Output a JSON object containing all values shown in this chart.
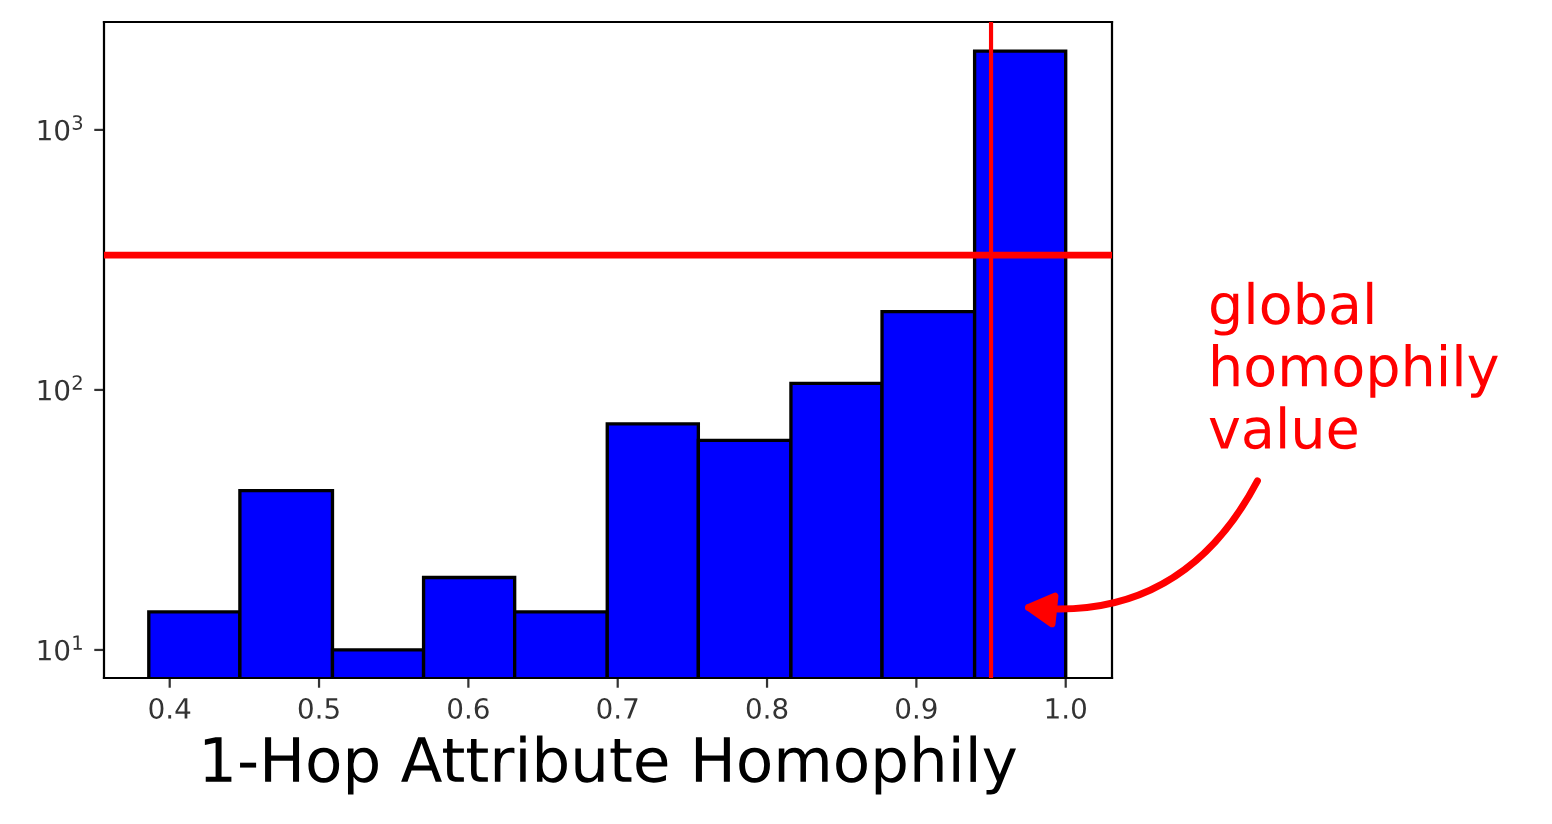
{
  "chart_data": {
    "type": "histogram",
    "xlabel": "1-Hop Attribute Homophily",
    "bins": [
      0.386,
      0.447,
      0.509,
      0.57,
      0.631,
      0.693,
      0.754,
      0.816,
      0.877,
      0.939,
      1.0
    ],
    "values": [
      14,
      41,
      10,
      19,
      14,
      74,
      64,
      106,
      200,
      2010
    ],
    "color": "#0000ff",
    "log": "y",
    "xlim": [
      0.356,
      1.031
    ],
    "xticks": [
      {
        "value": 0.4,
        "label": "0.4"
      },
      {
        "value": 0.5,
        "label": "0.5"
      },
      {
        "value": 0.6,
        "label": "0.6"
      },
      {
        "value": 0.7,
        "label": "0.7"
      },
      {
        "value": 0.8,
        "label": "0.8"
      },
      {
        "value": 0.9,
        "label": "0.9"
      },
      {
        "value": 1.0,
        "label": "1.0"
      }
    ],
    "ylim": [
      7.8,
      2600
    ],
    "yticks": [
      {
        "value": 10,
        "label": "10$^{1}$"
      },
      {
        "value": 100,
        "label": "10$^{2}$"
      },
      {
        "value": 1000,
        "label": "10$^{3}$"
      }
    ],
    "ref_lines": [
      {
        "axis": "x",
        "value": 0.95,
        "color": "#ff0000"
      },
      {
        "axis": "y",
        "value": 330,
        "color": "#ff0000"
      }
    ],
    "annotations": [
      "global\nhomophily\nvalue"
    ],
    "grid": false,
    "legend": false
  }
}
